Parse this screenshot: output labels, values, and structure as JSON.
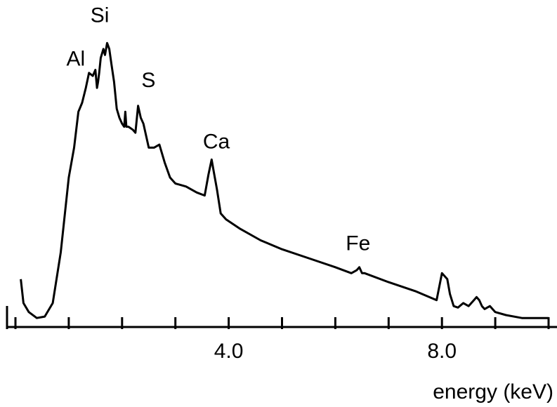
{
  "chart_data": {
    "type": "line",
    "title": "",
    "xlabel": "energy (keV)",
    "ylabel": "",
    "xlim": [
      0,
      10
    ],
    "ylim": [
      0,
      100
    ],
    "grid": false,
    "x_tick_values": [
      0,
      1,
      2,
      3,
      4,
      5,
      6,
      7,
      8,
      9,
      10
    ],
    "x_tick_labels": [
      {
        "value": 4.0,
        "label": "4.0"
      },
      {
        "value": 8.0,
        "label": "8.0"
      }
    ],
    "peak_labels": [
      {
        "label": "Al",
        "x": 1.5,
        "y": 86
      },
      {
        "label": "Si",
        "x": 1.74,
        "y": 95
      },
      {
        "label": "S",
        "x": 2.31,
        "y": 76
      },
      {
        "label": "Ca",
        "x": 3.69,
        "y": 56
      },
      {
        "label": "Fe",
        "x": 6.4,
        "y": 22
      }
    ],
    "series": [
      {
        "x": [
          0.1,
          0.15,
          0.25,
          0.4,
          0.55,
          0.7,
          0.85,
          1.0,
          1.1,
          1.18,
          1.25,
          1.32,
          1.38,
          1.45,
          1.5,
          1.53,
          1.55,
          1.57,
          1.6,
          1.65,
          1.68,
          1.72,
          1.76,
          1.8,
          1.85,
          1.9,
          1.95,
          2.0,
          2.04,
          2.06,
          2.08,
          2.12,
          2.2,
          2.25,
          2.3,
          2.35,
          2.4,
          2.5,
          2.6,
          2.7,
          2.8,
          2.9,
          3.0,
          3.2,
          3.4,
          3.55,
          3.62,
          3.68,
          3.72,
          3.78,
          3.85,
          3.95,
          4.2,
          4.6,
          5.0,
          5.5,
          6.0,
          6.3,
          6.4,
          6.45,
          6.5,
          6.55,
          7.0,
          7.5,
          7.9,
          8.0,
          8.1,
          8.15,
          8.22,
          8.3,
          8.4,
          8.5,
          8.6,
          8.65,
          8.7,
          8.75,
          8.8,
          8.9,
          9.0,
          9.2,
          9.5,
          10.0
        ],
        "y": [
          16,
          8,
          5,
          3,
          3.5,
          8,
          25,
          50,
          60,
          72,
          75,
          80,
          85,
          84,
          86,
          80,
          82,
          85,
          90,
          93,
          91,
          95,
          93,
          88,
          82,
          73,
          70,
          68,
          67,
          72,
          67,
          67,
          66,
          65,
          74,
          70,
          68,
          60,
          60,
          61,
          55,
          50,
          48,
          47,
          45,
          44,
          51,
          56,
          52,
          46,
          38,
          36,
          33,
          29,
          26,
          23,
          20,
          18,
          19,
          20,
          18,
          18,
          15,
          12,
          9,
          18,
          16,
          11,
          7,
          6.5,
          8,
          7,
          9,
          10,
          9,
          7,
          6,
          7,
          5,
          4,
          3,
          3
        ]
      }
    ]
  }
}
